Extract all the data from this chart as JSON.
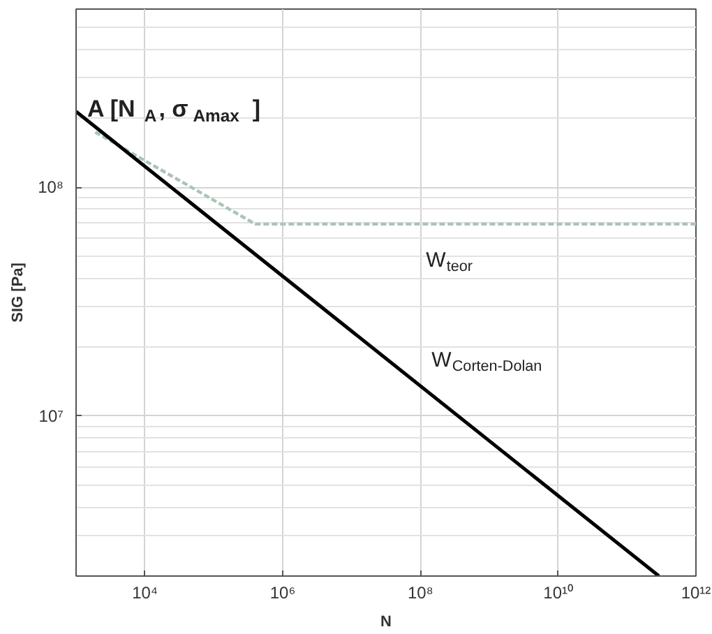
{
  "chart_data": {
    "type": "line",
    "xlabel": "N",
    "ylabel": "SIG [Pa]",
    "log": "xy",
    "grid": true,
    "xlim": [
      1000,
      1000000000000.0
    ],
    "ylim": [
      2000000.0,
      600000000.0
    ],
    "xticks": [
      {
        "value": 10000.0,
        "label": "10⁴"
      },
      {
        "value": 1000000.0,
        "label": "10⁶"
      },
      {
        "value": 100000000.0,
        "label": "10⁸"
      },
      {
        "value": 10000000000.0,
        "label": "10¹⁰"
      },
      {
        "value": 1000000000000.0,
        "label": "10¹²"
      }
    ],
    "yticks": [
      {
        "value": 10000000.0,
        "label": "10⁷"
      },
      {
        "value": 100000000.0,
        "label": "10⁸"
      }
    ],
    "series": [
      {
        "name": "W$_{teor}$",
        "color": "#a9c5b5",
        "line_style": "dashed",
        "x": [
          1900,
          400000,
          1000000000000.0
        ],
        "values": [
          174000000.0,
          69000000.0,
          69000000.0
        ]
      },
      {
        "name": "W$_{Corten-Dolan}$",
        "color": "#000000",
        "line_style": "solid",
        "x": [
          1000,
          290000000000.0
        ],
        "values": [
          214000000.0,
          2000000.0
        ]
      }
    ],
    "annotations": [
      {
        "text": "A [N$_{A}$, σ$_{Amax}$ ]",
        "x": 1000,
        "y": 214000000.0
      }
    ]
  }
}
